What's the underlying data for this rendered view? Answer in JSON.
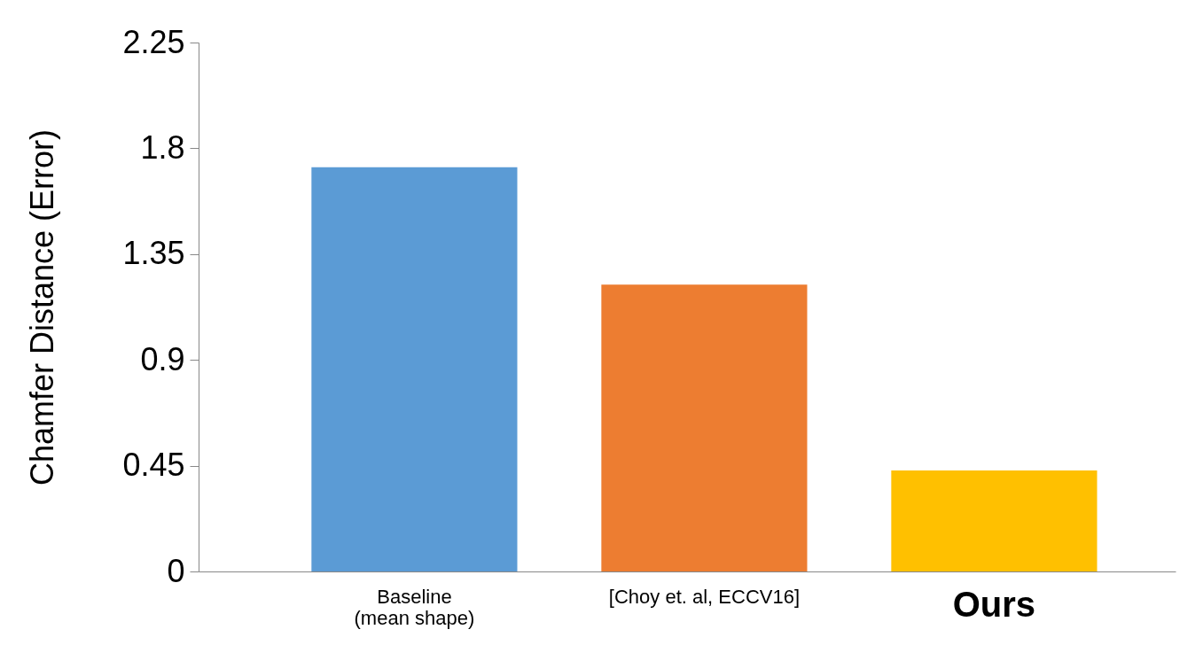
{
  "chart_data": {
    "type": "bar",
    "ylabel": "Chamfer Distance (Error)",
    "categories": [
      "Baseline\n(mean shape)",
      "[Choy et. al, ECCV16]",
      "Ours"
    ],
    "values": [
      1.72,
      1.22,
      0.43
    ],
    "colors": [
      "#5b9bd5",
      "#ed7d31",
      "#ffc000"
    ],
    "ylim": [
      0,
      2.25
    ],
    "yticks": [
      0,
      0.45,
      0.9,
      1.35,
      1.8,
      2.25
    ],
    "grid": false
  }
}
